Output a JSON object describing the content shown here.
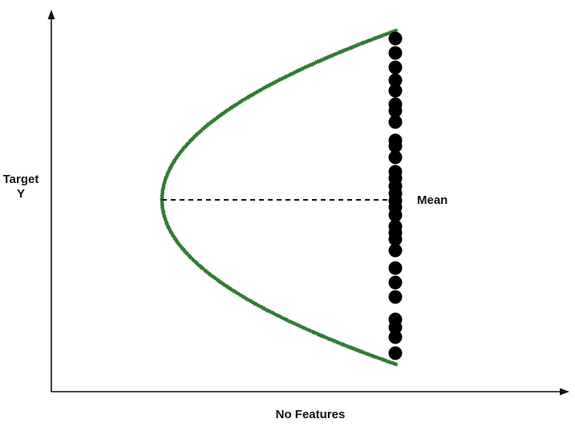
{
  "labels": {
    "y_axis_line1": "Target",
    "y_axis_line2": "Y",
    "x_axis": "No Features",
    "mean": "Mean"
  },
  "colors": {
    "curve": "#2e7d32",
    "dots": "#000000",
    "axes": "#111111",
    "mean_line": "#111111"
  },
  "icons": {
    "axis_arrows": "arrowhead"
  }
}
